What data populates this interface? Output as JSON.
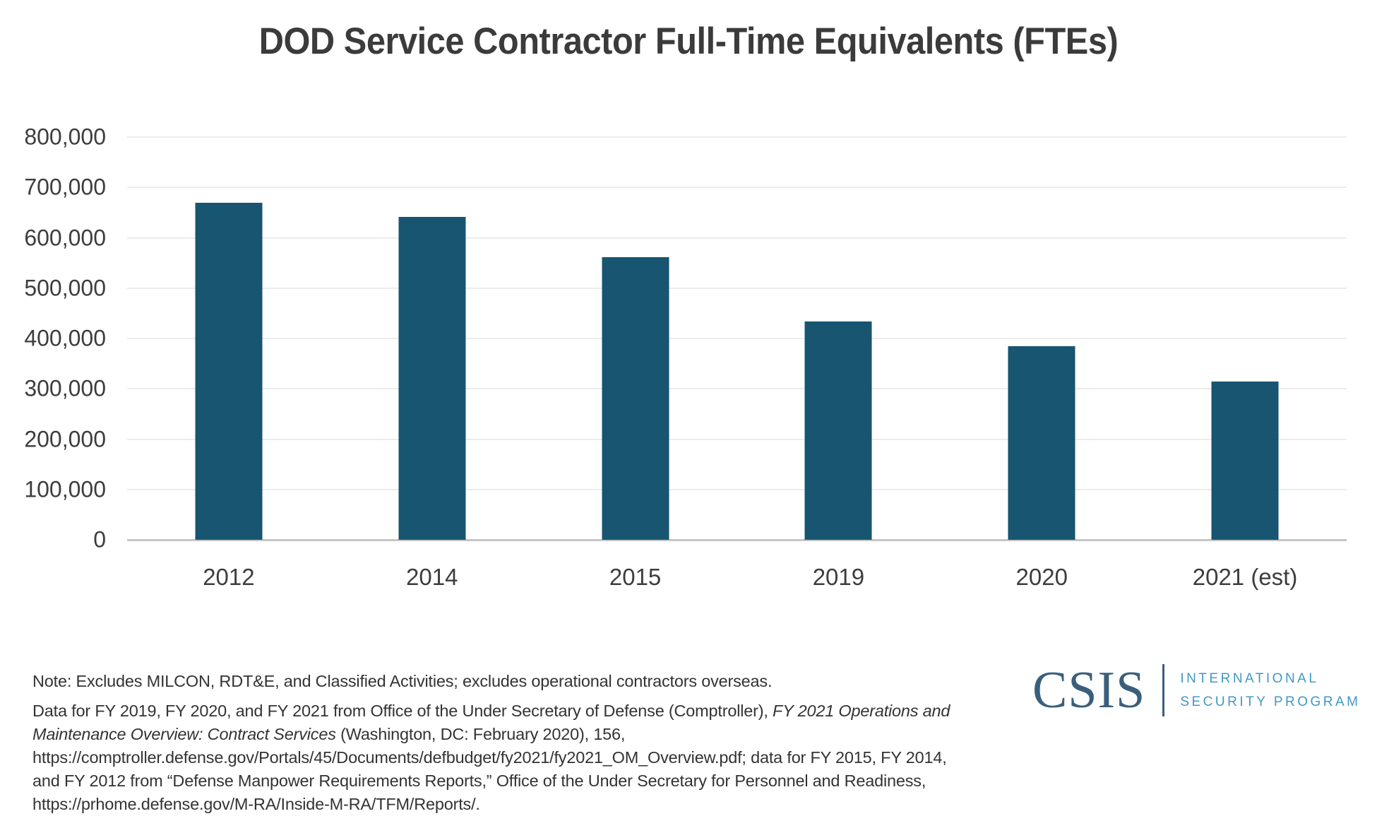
{
  "chart_data": {
    "type": "bar",
    "title": "DOD Service Contractor Full-Time Equivalents (FTEs)",
    "categories": [
      "2012",
      "2014",
      "2015",
      "2019",
      "2020",
      "2021 (est)"
    ],
    "values": [
      670000,
      641000,
      561000,
      434000,
      385000,
      314000
    ],
    "xlabel": "",
    "ylabel": "",
    "ylim": [
      0,
      800000
    ],
    "ytick_step": 100000,
    "ytick_labels": [
      "800,000",
      "700,000",
      "600,000",
      "500,000",
      "400,000",
      "300,000",
      "200,000",
      "100,000",
      "0"
    ],
    "grid": true,
    "legend_position": "none",
    "bar_color": "#175571",
    "gridline_color": "#ececec",
    "baseline_color": "#c6c6c6"
  },
  "note": {
    "line1": "Note: Excludes MILCON, RDT&E, and Classified Activities; excludes operational contractors overseas.",
    "source": {
      "l1_normal": "Data for FY 2019, FY 2020, and FY 2021 from Office of the Under Secretary of Defense (Comptroller), ",
      "l1_italic": "FY 2021 Operations and",
      "l2_italic": "Maintenance Overview: Contract Services",
      "l2_normal": " (Washington, DC: February 2020), 156,",
      "l3": "https://comptroller.defense.gov/Portals/45/Documents/defbudget/fy2021/fy2021_OM_Overview.pdf; data for FY 2015, FY 2014,",
      "l4": "and FY 2012 from “Defense Manpower Requirements Reports,” Office of the Under Secretary for Personnel and Readiness,",
      "l5": "https://prhome.defense.gov/M-RA/Inside-M-RA/TFM/Reports/."
    }
  },
  "logo": {
    "wordmark": "CSIS",
    "program_line1": "INTERNATIONAL",
    "program_line2": "SECURITY PROGRAM",
    "wordmark_color": "#3a5f7c",
    "program_color": "#4199c2"
  },
  "colors": {
    "title_text": "#3b3b3b",
    "axis_label_text": "#3d3d3d",
    "note_text": "#333333",
    "background": "#ffffff"
  }
}
